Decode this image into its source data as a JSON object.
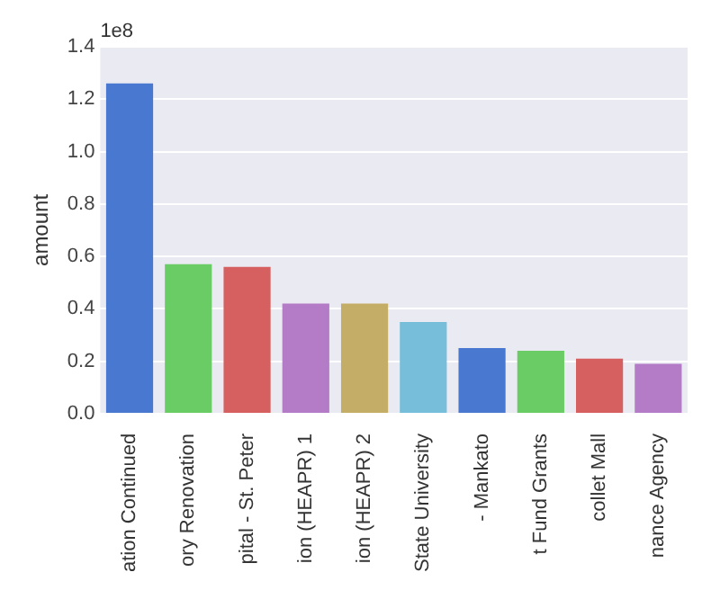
{
  "chart_data": {
    "type": "bar",
    "ylabel": "amount",
    "annotations": [
      "1e8"
    ],
    "categories": [
      "ation Continued",
      "ory Renovation",
      "pital - St. Peter",
      "ion (HEAPR) 1",
      "ion (HEAPR) 2",
      "State University",
      "- Mankato",
      "t Fund Grants",
      "collet Mall",
      "nance Agency"
    ],
    "values": [
      1.26,
      0.57,
      0.56,
      0.42,
      0.42,
      0.35,
      0.25,
      0.24,
      0.21,
      0.19
    ],
    "colors": [
      "#4878cf",
      "#6acc65",
      "#d65f5f",
      "#b47cc7",
      "#c4ad66",
      "#77bedb",
      "#4878cf",
      "#6acc65",
      "#d65f5f",
      "#b47cc7"
    ],
    "ylim": [
      0,
      1.4
    ],
    "yticks": [
      {
        "value": 0,
        "label": "0.0"
      },
      {
        "value": 0.2,
        "label": "0.2"
      },
      {
        "value": 0.4,
        "label": "0.4"
      },
      {
        "value": 0.6,
        "label": "0.6"
      },
      {
        "value": 0.8,
        "label": "0.8"
      },
      {
        "value": 1,
        "label": "1.0"
      },
      {
        "value": 1.2,
        "label": "1.2"
      },
      {
        "value": 1.4,
        "label": "1.4"
      }
    ],
    "grid": "y",
    "legend": false
  }
}
